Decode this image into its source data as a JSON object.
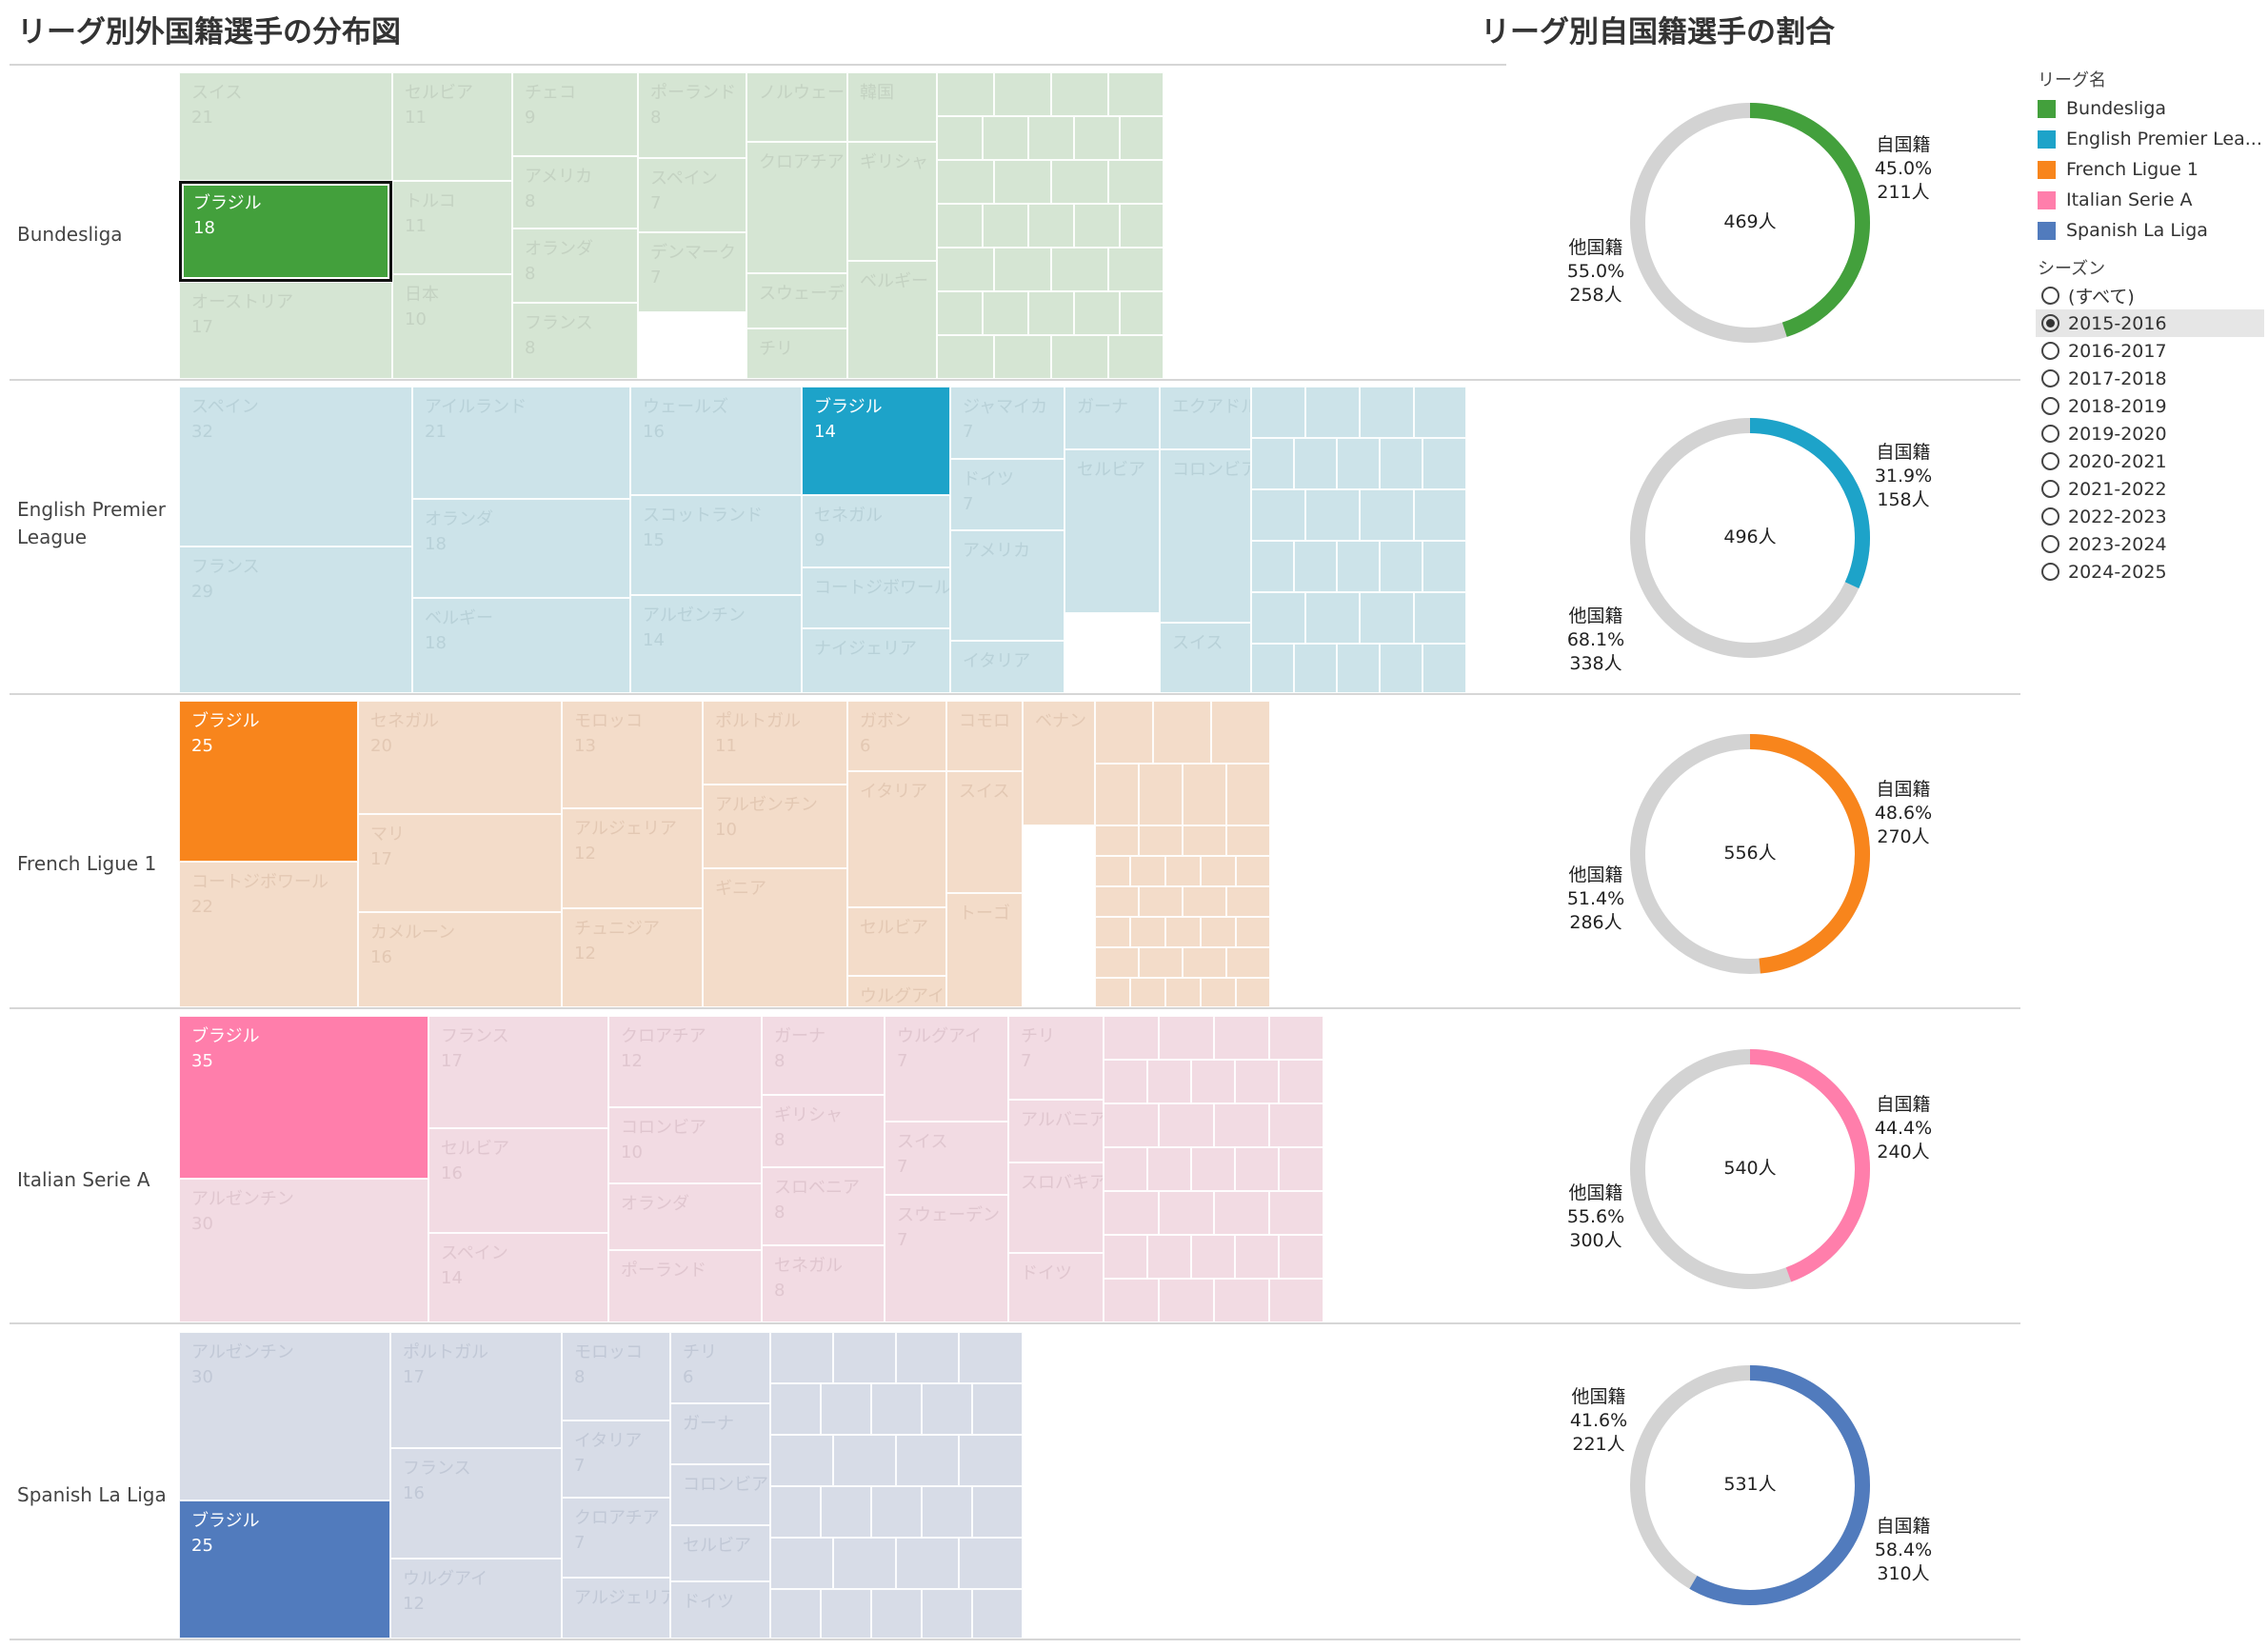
{
  "titles": {
    "left": "リーグ別外国籍選手の分布図",
    "right": "リーグ別自国籍選手の割合"
  },
  "legend": {
    "league_title": "リーグ名",
    "leagues": [
      {
        "name": "Bundesliga",
        "color": "#43a03c"
      },
      {
        "name": "English Premier Lea...",
        "color": "#1da3c9"
      },
      {
        "name": "French Ligue 1",
        "color": "#f8851c"
      },
      {
        "name": "Italian Serie A",
        "color": "#ff7eab"
      },
      {
        "name": "Spanish La Liga",
        "color": "#517bbd"
      }
    ],
    "season_title": "シーズン",
    "seasons": [
      "(すべて)",
      "2015-2016",
      "2016-2017",
      "2017-2018",
      "2018-2019",
      "2019-2020",
      "2020-2021",
      "2021-2022",
      "2022-2023",
      "2023-2024",
      "2024-2025"
    ],
    "selected_season": "2015-2016"
  },
  "leagues": [
    {
      "name": "Bundesliga",
      "color": "#43a03c",
      "light": "#d5e5d3",
      "label_color": "#c4d2c2",
      "countries": [
        {
          "n": "スイス",
          "v": "21"
        },
        {
          "n": "ブラジル",
          "v": "18",
          "hl": true
        },
        {
          "n": "オーストリア",
          "v": "17"
        },
        {
          "n": "セルビア",
          "v": "11"
        },
        {
          "n": "トルコ",
          "v": "11"
        },
        {
          "n": "日本",
          "v": "10"
        },
        {
          "n": "チェコ",
          "v": "9"
        },
        {
          "n": "アメリカ",
          "v": "8"
        },
        {
          "n": "オランダ",
          "v": "8"
        },
        {
          "n": "フランス",
          "v": "8"
        },
        {
          "n": "ポーランド",
          "v": "8"
        },
        {
          "n": "スペイン",
          "v": "7"
        },
        {
          "n": "デンマーク",
          "v": "7"
        },
        {
          "n": "ノルウェー"
        },
        {
          "n": "クロアチア"
        },
        {
          "n": "スウェーデン"
        },
        {
          "n": "チリ"
        },
        {
          "n": "韓国"
        },
        {
          "n": "ギリシャ"
        },
        {
          "n": "ベルギー"
        }
      ],
      "donut": {
        "total": "469人",
        "home": {
          "label": "自国籍",
          "pct": "45.0%",
          "count": "211人",
          "value": 45.0
        },
        "other": {
          "label": "他国籍",
          "pct": "55.0%",
          "count": "258人",
          "value": 55.0
        }
      }
    },
    {
      "name": "English Premier\nLeague",
      "color": "#1da3c9",
      "light": "#cce3e9",
      "label_color": "#b8d1d8",
      "countries": [
        {
          "n": "スペイン",
          "v": "32"
        },
        {
          "n": "フランス",
          "v": "29"
        },
        {
          "n": "アイルランド",
          "v": "21"
        },
        {
          "n": "オランダ",
          "v": "18"
        },
        {
          "n": "ベルギー",
          "v": "18"
        },
        {
          "n": "ウェールズ",
          "v": "16"
        },
        {
          "n": "スコットランド",
          "v": "15"
        },
        {
          "n": "アルゼンチン",
          "v": "14"
        },
        {
          "n": "ブラジル",
          "v": "14",
          "hl": true
        },
        {
          "n": "セネガル",
          "v": "9"
        },
        {
          "n": "コートジボワール"
        },
        {
          "n": "ナイジェリア"
        },
        {
          "n": "ジャマイカ",
          "v": "7"
        },
        {
          "n": "ドイツ",
          "v": "7"
        },
        {
          "n": "アメリカ"
        },
        {
          "n": "イタリア"
        },
        {
          "n": "ガーナ"
        },
        {
          "n": "セルビア"
        },
        {
          "n": "エクアドル"
        },
        {
          "n": "コロンビア"
        },
        {
          "n": "スイス"
        }
      ],
      "donut": {
        "total": "496人",
        "home": {
          "label": "自国籍",
          "pct": "31.9%",
          "count": "158人",
          "value": 31.9
        },
        "other": {
          "label": "他国籍",
          "pct": "68.1%",
          "count": "338人",
          "value": 68.1
        }
      }
    },
    {
      "name": "French Ligue 1",
      "color": "#f8851c",
      "light": "#f3dcc9",
      "label_color": "#e3c8b3",
      "countries": [
        {
          "n": "ブラジル",
          "v": "25",
          "hl": true
        },
        {
          "n": "コートジボワール",
          "v": "22"
        },
        {
          "n": "セネガル",
          "v": "20"
        },
        {
          "n": "マリ",
          "v": "17"
        },
        {
          "n": "カメルーン",
          "v": "16"
        },
        {
          "n": "モロッコ",
          "v": "13"
        },
        {
          "n": "アルジェリア",
          "v": "12"
        },
        {
          "n": "チュニジア",
          "v": "12"
        },
        {
          "n": "ポルトガル",
          "v": "11"
        },
        {
          "n": "アルゼンチン",
          "v": "10"
        },
        {
          "n": "ギニア"
        },
        {
          "n": "ガボン",
          "v": "6"
        },
        {
          "n": "イタリア"
        },
        {
          "n": "セルビア"
        },
        {
          "n": "ウルグアイ"
        },
        {
          "n": "コモロ"
        },
        {
          "n": "スイス"
        },
        {
          "n": "トーゴ"
        },
        {
          "n": "ベナン"
        }
      ],
      "donut": {
        "total": "556人",
        "home": {
          "label": "自国籍",
          "pct": "48.6%",
          "count": "270人",
          "value": 48.6
        },
        "other": {
          "label": "他国籍",
          "pct": "51.4%",
          "count": "286人",
          "value": 51.4
        }
      }
    },
    {
      "name": "Italian Serie A",
      "color": "#ff7eab",
      "light": "#f2dbe3",
      "label_color": "#e0c6cf",
      "countries": [
        {
          "n": "ブラジル",
          "v": "35",
          "hl": true
        },
        {
          "n": "アルゼンチン",
          "v": "30"
        },
        {
          "n": "フランス",
          "v": "17"
        },
        {
          "n": "セルビア",
          "v": "16"
        },
        {
          "n": "スペイン",
          "v": "14"
        },
        {
          "n": "クロアチア",
          "v": "12"
        },
        {
          "n": "コロンビア",
          "v": "10"
        },
        {
          "n": "オランダ"
        },
        {
          "n": "ポーランド"
        },
        {
          "n": "ガーナ",
          "v": "8"
        },
        {
          "n": "ギリシャ",
          "v": "8"
        },
        {
          "n": "スロベニア",
          "v": "8"
        },
        {
          "n": "セネガル",
          "v": "8"
        },
        {
          "n": "ウルグアイ",
          "v": "7"
        },
        {
          "n": "スイス",
          "v": "7"
        },
        {
          "n": "スウェーデン",
          "v": "7"
        },
        {
          "n": "チリ",
          "v": "7"
        },
        {
          "n": "アルバニア"
        },
        {
          "n": "スロバキア"
        },
        {
          "n": "ドイツ"
        }
      ],
      "donut": {
        "total": "540人",
        "home": {
          "label": "自国籍",
          "pct": "44.4%",
          "count": "240人",
          "value": 44.4
        },
        "other": {
          "label": "他国籍",
          "pct": "55.6%",
          "count": "300人",
          "value": 55.6
        }
      }
    },
    {
      "name": "Spanish La Liga",
      "color": "#517bbd",
      "light": "#d7dce7",
      "label_color": "#c1c8d6",
      "countries": [
        {
          "n": "アルゼンチン",
          "v": "30"
        },
        {
          "n": "ブラジル",
          "v": "25",
          "hl": true
        },
        {
          "n": "ポルトガル",
          "v": "17"
        },
        {
          "n": "フランス",
          "v": "16"
        },
        {
          "n": "ウルグアイ",
          "v": "12"
        },
        {
          "n": "モロッコ",
          "v": "8"
        },
        {
          "n": "イタリア",
          "v": "7"
        },
        {
          "n": "クロアチア",
          "v": "7"
        },
        {
          "n": "アルジェリア"
        },
        {
          "n": "チリ",
          "v": "6"
        },
        {
          "n": "ガーナ"
        },
        {
          "n": "コロンビア"
        },
        {
          "n": "セルビア"
        },
        {
          "n": "ドイツ"
        }
      ],
      "donut": {
        "total": "531人",
        "home": {
          "label": "自国籍",
          "pct": "58.4%",
          "count": "310人",
          "value": 58.4
        },
        "other": {
          "label": "他国籍",
          "pct": "41.6%",
          "count": "221人",
          "value": 41.6
        }
      }
    }
  ]
}
